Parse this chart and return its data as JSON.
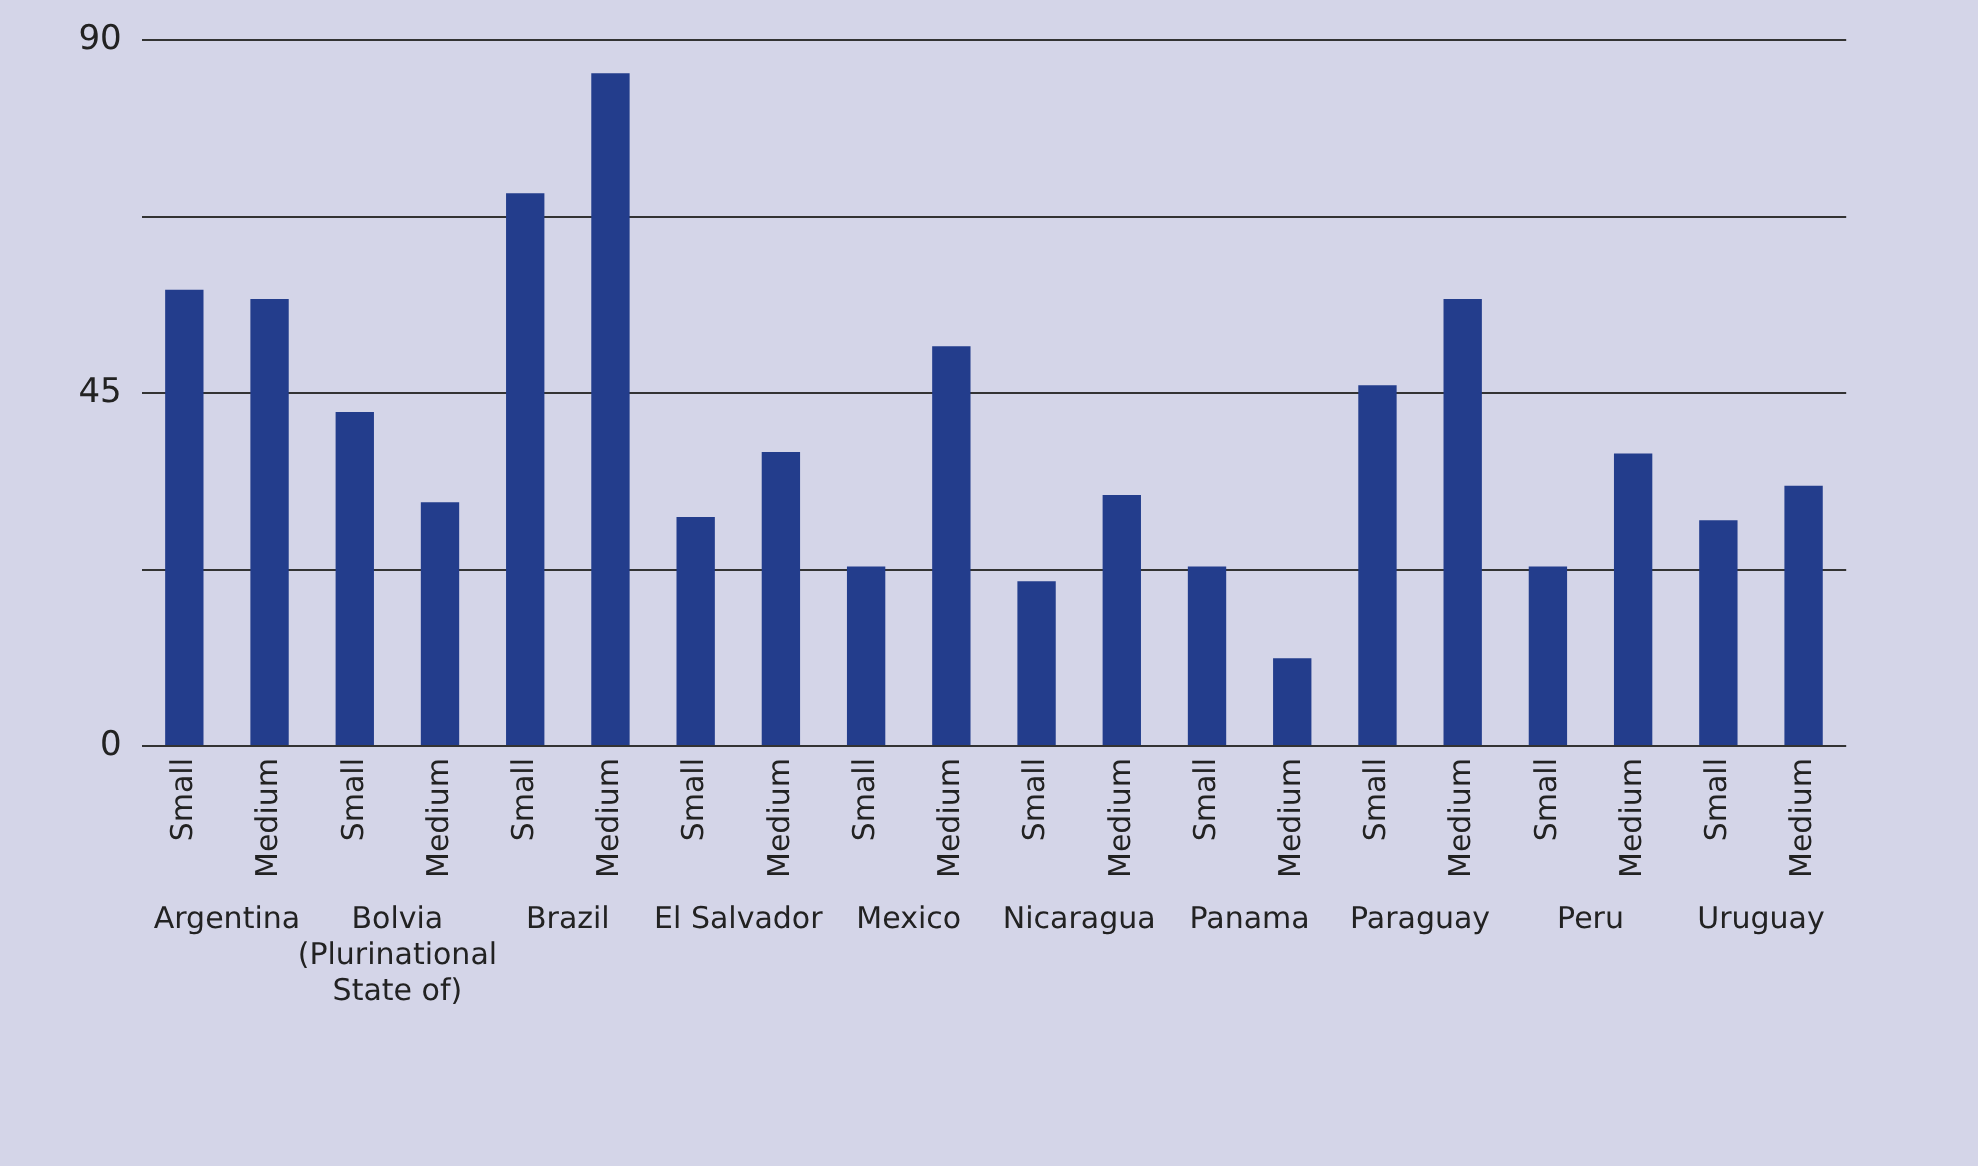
{
  "chart_data": {
    "type": "bar",
    "categories": [
      "Argentina",
      "Bolvia (Plurinational State of)",
      "Brazil",
      "El Salvador",
      "Mexico",
      "Nicaragua",
      "Panama",
      "Paraguay",
      "Peru",
      "Uruguay"
    ],
    "series": [
      {
        "name": "Small",
        "color": "#233d8c",
        "values": [
          58.2,
          42.6,
          70.5,
          29.2,
          22.9,
          21.0,
          22.9,
          46.0,
          22.9,
          28.8
        ]
      },
      {
        "name": "Medium",
        "color": "#233d8c",
        "values": [
          57.0,
          31.1,
          85.8,
          37.5,
          51.0,
          32.0,
          11.2,
          57.0,
          37.3,
          33.2
        ]
      }
    ],
    "ylim": [
      0,
      90
    ],
    "yticks": [
      0,
      {
        "value": 22.5,
        "label": null
      },
      45,
      {
        "value": 67.5,
        "label": null
      },
      90
    ],
    "grid": "y",
    "legend": false
  }
}
